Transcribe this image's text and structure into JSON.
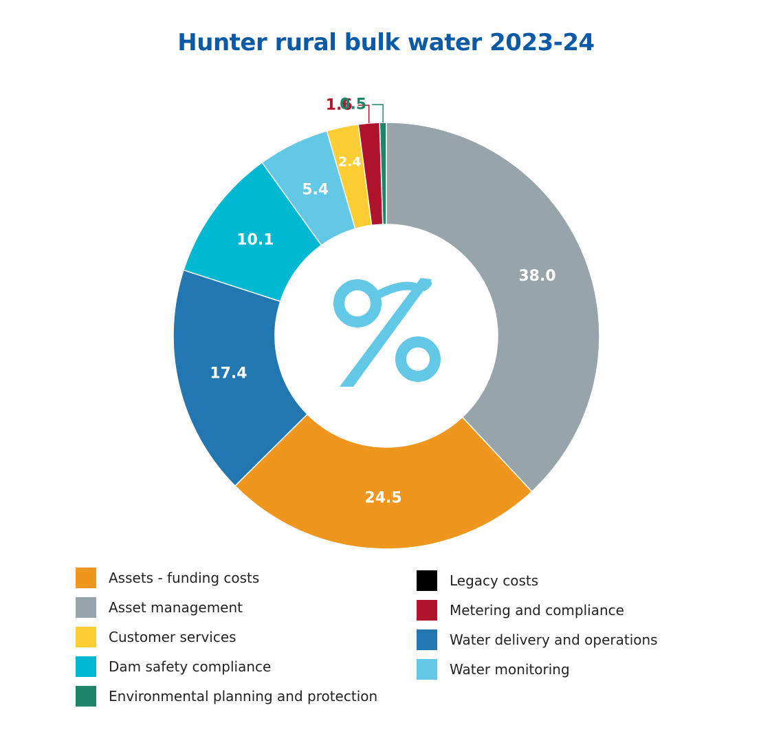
{
  "colors": {
    "title": "#0b5aa6",
    "percent_icon": "#62c8e6"
  },
  "chart_data": {
    "type": "pie",
    "variant": "donut",
    "title": "Hunter rural bulk water 2023-24",
    "center_icon": "percent-icon",
    "slices": [
      {
        "label": "Asset management",
        "value": 38.0,
        "display": "38.0",
        "color": "#97a4aa",
        "label_color": "#ffffff"
      },
      {
        "label": "Assets - funding costs",
        "value": 24.5,
        "display": "24.5",
        "color": "#ee961d",
        "label_color": "#ffffff"
      },
      {
        "label": "Water delivery and operations",
        "value": 17.4,
        "display": "17.4",
        "color": "#2277b0",
        "label_color": "#ffffff"
      },
      {
        "label": "Dam safety compliance",
        "value": 10.1,
        "display": "10.1",
        "color": "#00b8d2",
        "label_color": "#ffffff"
      },
      {
        "label": "Water monitoring",
        "value": 5.4,
        "display": "5.4",
        "color": "#62c8e6",
        "label_color": "#ffffff"
      },
      {
        "label": "Customer services",
        "value": 2.4,
        "display": "2.4",
        "color": "#fdcd34",
        "label_color": "#ffffff"
      },
      {
        "label": "Metering and compliance",
        "value": 1.6,
        "display": "1.6",
        "color": "#b0132e",
        "label_color": "#b0132e",
        "callout": true
      },
      {
        "label": "Environmental planning and protection",
        "value": 0.5,
        "display": "0.5",
        "color": "#1f8468",
        "label_color": "#1f8468",
        "callout": true
      }
    ],
    "legend": {
      "columns": [
        [
          {
            "label": "Assets - funding costs",
            "color": "#ee961d"
          },
          {
            "label": "Asset management",
            "color": "#97a4aa"
          },
          {
            "label": "Customer services",
            "color": "#fdcd34"
          },
          {
            "label": "Dam safety compliance",
            "color": "#00b8d2"
          },
          {
            "label": "Environmental planning and protection",
            "color": "#1f8468"
          }
        ],
        [
          {
            "label": "Legacy costs",
            "color": "#000000"
          },
          {
            "label": "Metering and compliance",
            "color": "#b0132e"
          },
          {
            "label": "Water delivery and operations",
            "color": "#2277b0"
          },
          {
            "label": "Water monitoring",
            "color": "#62c8e6"
          }
        ]
      ]
    }
  }
}
